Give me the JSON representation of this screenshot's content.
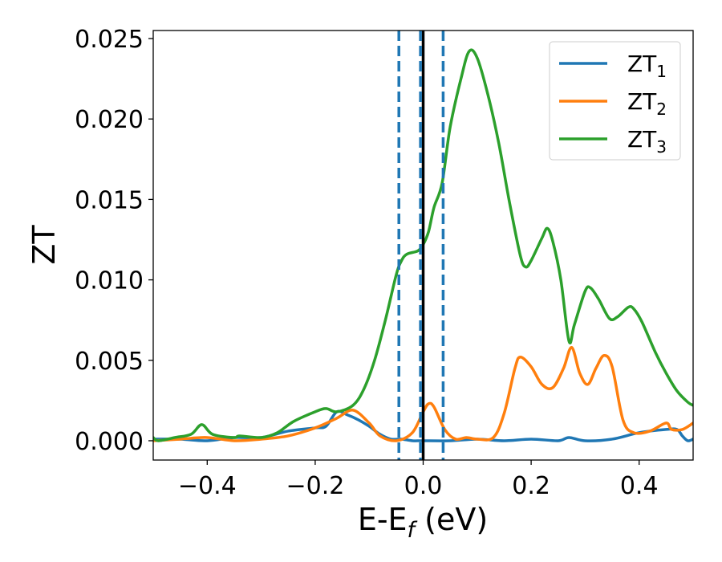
{
  "chart_data": {
    "type": "line",
    "xlabel": "E-E",
    "xlabel_sub": "f",
    "xlabel_unit": " (eV)",
    "ylabel": "ZT",
    "xlim": [
      -0.5,
      0.5
    ],
    "ylim": [
      -0.0012,
      0.0255
    ],
    "xticks": [
      -0.4,
      -0.2,
      0.0,
      0.2,
      0.4
    ],
    "xtick_labels": [
      "−0.4",
      "−0.2",
      "0.0",
      "0.2",
      "0.4"
    ],
    "yticks": [
      0.0,
      0.005,
      0.01,
      0.015,
      0.02,
      0.025
    ],
    "ytick_labels": [
      "0.000",
      "0.005",
      "0.010",
      "0.015",
      "0.020",
      "0.025"
    ],
    "legend_position": "top-right",
    "grid": false,
    "vlines": [
      {
        "x": 0.0,
        "style": "solid",
        "color": "#000000"
      },
      {
        "x": -0.045,
        "style": "dashed",
        "color": "#1f77b4"
      },
      {
        "x": -0.005,
        "style": "dashed",
        "color": "#1f77b4"
      },
      {
        "x": 0.037,
        "style": "dashed",
        "color": "#1f77b4"
      }
    ],
    "series": [
      {
        "name": "ZT",
        "sub": "1",
        "color": "#1f77b4",
        "points": [
          [
            -0.5,
            0.0001
          ],
          [
            -0.45,
            0.0001
          ],
          [
            -0.4,
            0.0
          ],
          [
            -0.35,
            0.0002
          ],
          [
            -0.3,
            0.0002
          ],
          [
            -0.25,
            0.0006
          ],
          [
            -0.2,
            0.0008
          ],
          [
            -0.18,
            0.0009
          ],
          [
            -0.16,
            0.0018
          ],
          [
            -0.14,
            0.0016
          ],
          [
            -0.12,
            0.0013
          ],
          [
            -0.1,
            0.0009
          ],
          [
            -0.08,
            0.0004
          ],
          [
            -0.06,
            0.0001
          ],
          [
            -0.04,
            0.0001
          ],
          [
            -0.02,
            0.0
          ],
          [
            0.0,
            0.0
          ],
          [
            0.05,
            0.0
          ],
          [
            0.1,
            0.0001
          ],
          [
            0.15,
            0.0
          ],
          [
            0.2,
            0.0001
          ],
          [
            0.25,
            0.0
          ],
          [
            0.27,
            0.0002
          ],
          [
            0.3,
            0.0
          ],
          [
            0.35,
            0.0001
          ],
          [
            0.4,
            0.0005
          ],
          [
            0.45,
            0.0007
          ],
          [
            0.47,
            0.0007
          ],
          [
            0.48,
            0.0003
          ],
          [
            0.49,
            0.0
          ],
          [
            0.5,
            0.0001
          ]
        ]
      },
      {
        "name": "ZT",
        "sub": "2",
        "color": "#ff7f0e",
        "points": [
          [
            -0.5,
            0.0
          ],
          [
            -0.45,
            0.0001
          ],
          [
            -0.4,
            0.0002
          ],
          [
            -0.35,
            0.0
          ],
          [
            -0.3,
            0.0001
          ],
          [
            -0.25,
            0.0003
          ],
          [
            -0.2,
            0.0008
          ],
          [
            -0.16,
            0.0014
          ],
          [
            -0.13,
            0.0019
          ],
          [
            -0.1,
            0.0011
          ],
          [
            -0.08,
            0.0003
          ],
          [
            -0.05,
            0.0
          ],
          [
            -0.02,
            0.0005
          ],
          [
            0.0,
            0.0018
          ],
          [
            0.01,
            0.0023
          ],
          [
            0.02,
            0.0021
          ],
          [
            0.04,
            0.0007
          ],
          [
            0.06,
            0.0001
          ],
          [
            0.08,
            0.0002
          ],
          [
            0.1,
            0.0001
          ],
          [
            0.13,
            0.0002
          ],
          [
            0.15,
            0.0017
          ],
          [
            0.17,
            0.0045
          ],
          [
            0.18,
            0.0052
          ],
          [
            0.2,
            0.0046
          ],
          [
            0.22,
            0.0035
          ],
          [
            0.24,
            0.0033
          ],
          [
            0.26,
            0.0045
          ],
          [
            0.275,
            0.0058
          ],
          [
            0.29,
            0.0042
          ],
          [
            0.305,
            0.0035
          ],
          [
            0.32,
            0.0045
          ],
          [
            0.335,
            0.0053
          ],
          [
            0.35,
            0.0046
          ],
          [
            0.37,
            0.0013
          ],
          [
            0.39,
            0.0005
          ],
          [
            0.42,
            0.0006
          ],
          [
            0.45,
            0.0011
          ],
          [
            0.46,
            0.0007
          ],
          [
            0.48,
            0.0007
          ],
          [
            0.5,
            0.0011
          ]
        ]
      },
      {
        "name": "ZT",
        "sub": "3",
        "color": "#2ca02c",
        "points": [
          [
            -0.5,
            0.0002
          ],
          [
            -0.49,
            0.0
          ],
          [
            -0.46,
            0.0002
          ],
          [
            -0.43,
            0.0004
          ],
          [
            -0.41,
            0.001
          ],
          [
            -0.39,
            0.0004
          ],
          [
            -0.35,
            0.0002
          ],
          [
            -0.34,
            0.0003
          ],
          [
            -0.3,
            0.0002
          ],
          [
            -0.27,
            0.0005
          ],
          [
            -0.24,
            0.0012
          ],
          [
            -0.2,
            0.0018
          ],
          [
            -0.18,
            0.002
          ],
          [
            -0.16,
            0.0018
          ],
          [
            -0.13,
            0.0022
          ],
          [
            -0.11,
            0.0032
          ],
          [
            -0.09,
            0.005
          ],
          [
            -0.07,
            0.0075
          ],
          [
            -0.05,
            0.0103
          ],
          [
            -0.04,
            0.0112
          ],
          [
            -0.03,
            0.0116
          ],
          [
            -0.01,
            0.0118
          ],
          [
            0.0,
            0.0122
          ],
          [
            0.01,
            0.013
          ],
          [
            0.02,
            0.0145
          ],
          [
            0.035,
            0.016
          ],
          [
            0.05,
            0.0195
          ],
          [
            0.07,
            0.0225
          ],
          [
            0.085,
            0.0242
          ],
          [
            0.1,
            0.0238
          ],
          [
            0.12,
            0.0215
          ],
          [
            0.14,
            0.0185
          ],
          [
            0.16,
            0.0148
          ],
          [
            0.18,
            0.0115
          ],
          [
            0.19,
            0.0108
          ],
          [
            0.2,
            0.0112
          ],
          [
            0.22,
            0.0126
          ],
          [
            0.23,
            0.0132
          ],
          [
            0.24,
            0.0124
          ],
          [
            0.255,
            0.01
          ],
          [
            0.27,
            0.0062
          ],
          [
            0.28,
            0.0072
          ],
          [
            0.3,
            0.0093
          ],
          [
            0.31,
            0.0095
          ],
          [
            0.325,
            0.0088
          ],
          [
            0.345,
            0.0076
          ],
          [
            0.36,
            0.0077
          ],
          [
            0.38,
            0.0083
          ],
          [
            0.39,
            0.0082
          ],
          [
            0.405,
            0.0074
          ],
          [
            0.43,
            0.0055
          ],
          [
            0.45,
            0.0042
          ],
          [
            0.47,
            0.0031
          ],
          [
            0.49,
            0.0024
          ],
          [
            0.5,
            0.0022
          ]
        ]
      }
    ]
  }
}
